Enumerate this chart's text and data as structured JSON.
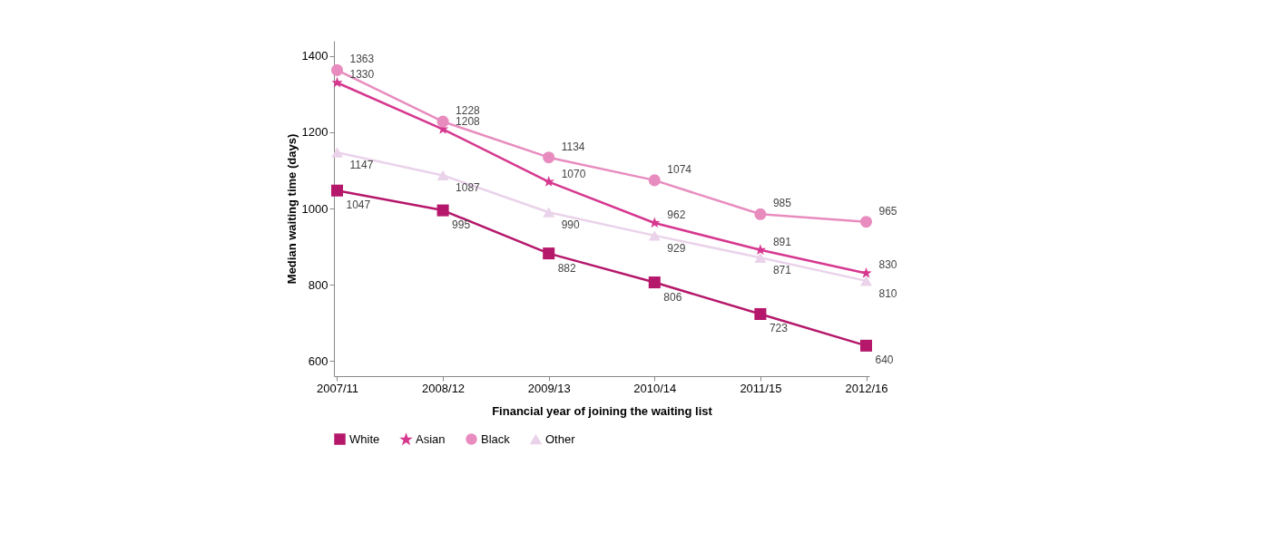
{
  "chart_data": {
    "type": "line",
    "xlabel": "Financial year of joining the waiting list",
    "ylabel": "Median waiting time (days)",
    "categories": [
      "2007/11",
      "2008/12",
      "2009/13",
      "2010/14",
      "2011/15",
      "2012/16"
    ],
    "series": [
      {
        "name": "White",
        "color": "#b5186b",
        "marker": "square",
        "values": [
          1047,
          995,
          882,
          806,
          723,
          640
        ]
      },
      {
        "name": "Asian",
        "color": "#d6388f",
        "marker": "star",
        "values": [
          1330,
          1208,
          1070,
          962,
          891,
          830
        ]
      },
      {
        "name": "Black",
        "color": "#e88cbf",
        "marker": "circle",
        "values": [
          1363,
          1228,
          1134,
          1074,
          985,
          965
        ]
      },
      {
        "name": "Other",
        "color": "#ead3ea",
        "marker": "triangle",
        "values": [
          1147,
          1087,
          990,
          929,
          871,
          810
        ]
      }
    ],
    "ylim": [
      560,
      1440
    ],
    "yticks": [
      600,
      800,
      1000,
      1200,
      1400
    ],
    "grid": false,
    "legend": "bottom",
    "data_labels": true
  }
}
